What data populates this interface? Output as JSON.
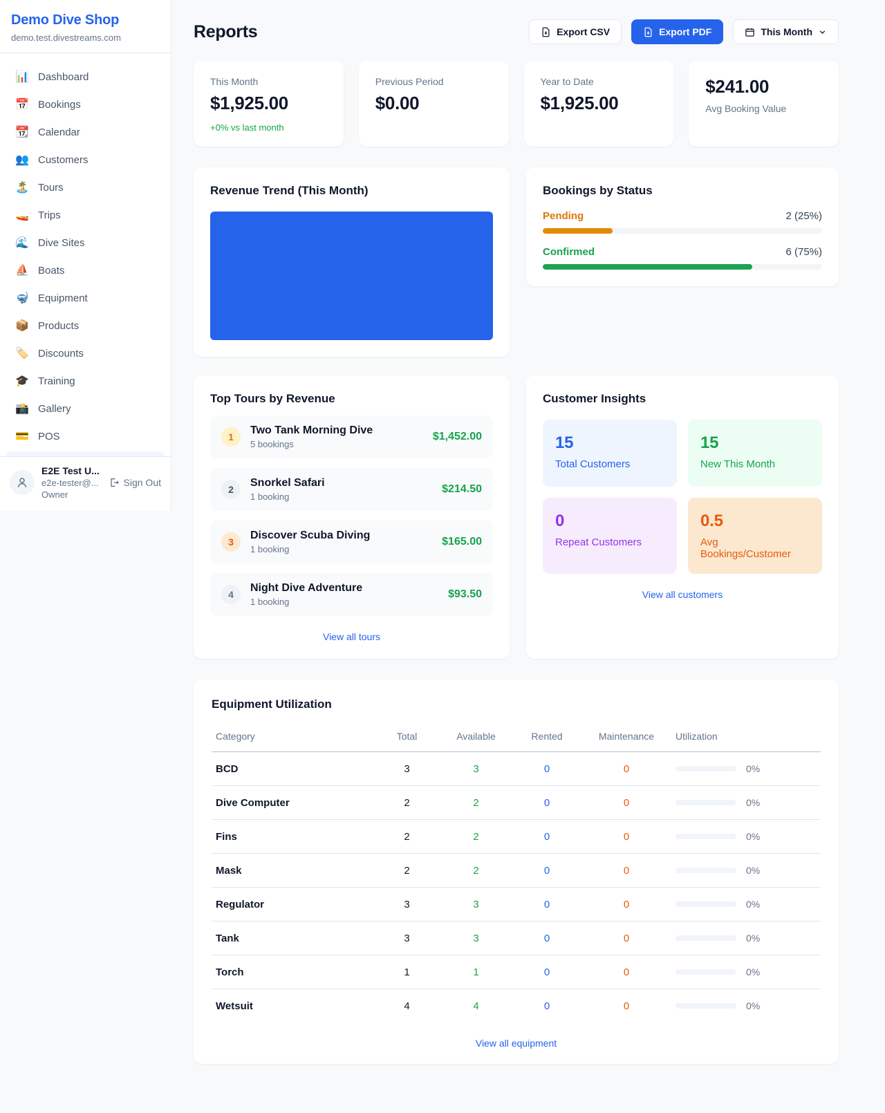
{
  "brand": {
    "name": "Demo Dive Shop",
    "domain": "demo.test.divestreams.com"
  },
  "colors": {
    "accent": "#2563eb",
    "success": "#16a34a",
    "warning": "#d97706",
    "danger_orange": "#ea580c",
    "purple": "#9333ea",
    "link": "#2563eb"
  },
  "sidebar": {
    "items": [
      {
        "icon": "📊",
        "label": "Dashboard"
      },
      {
        "icon": "📅",
        "label": "Bookings"
      },
      {
        "icon": "📆",
        "label": "Calendar"
      },
      {
        "icon": "👥",
        "label": "Customers"
      },
      {
        "icon": "🏝️",
        "label": "Tours"
      },
      {
        "icon": "🚤",
        "label": "Trips"
      },
      {
        "icon": "🌊",
        "label": "Dive Sites"
      },
      {
        "icon": "⛵",
        "label": "Boats"
      },
      {
        "icon": "🤿",
        "label": "Equipment"
      },
      {
        "icon": "📦",
        "label": "Products"
      },
      {
        "icon": "🏷️",
        "label": "Discounts"
      },
      {
        "icon": "🎓",
        "label": "Training"
      },
      {
        "icon": "📸",
        "label": "Gallery"
      },
      {
        "icon": "💳",
        "label": "POS"
      }
    ],
    "user": {
      "name": "E2E Test U...",
      "email": "e2e-tester@...",
      "role": "Owner",
      "signout_label": "Sign Out"
    }
  },
  "header": {
    "title": "Reports",
    "export_csv_label": "Export CSV",
    "export_pdf_label": "Export PDF",
    "period_label": "This Month"
  },
  "stats": [
    {
      "label": "This Month",
      "value": "$1,925.00",
      "delta": "+0% vs last month"
    },
    {
      "label": "Previous Period",
      "value": "$0.00"
    },
    {
      "label": "Year to Date",
      "value": "$1,925.00"
    },
    {
      "label": "Avg Booking Value",
      "value": "$241.00"
    }
  ],
  "revenue_trend": {
    "title": "Revenue Trend (This Month)",
    "bar_color": "#2563eb"
  },
  "bookings_by_status": {
    "title": "Bookings by Status",
    "rows": [
      {
        "label": "Pending",
        "value": "2 (25%)",
        "percent": 25,
        "color": "#d97706",
        "bar_color": "#e28a00"
      },
      {
        "label": "Confirmed",
        "value": "6 (75%)",
        "percent": 75,
        "color": "#16a34a",
        "bar_color": "#1ca34f"
      }
    ]
  },
  "top_tours": {
    "title": "Top Tours by Revenue",
    "rows": [
      {
        "rank": "1",
        "name": "Two Tank Morning Dive",
        "bookings": "5 bookings",
        "revenue": "$1,452.00",
        "badge_bg": "#fdf2c8",
        "badge_fg": "#d97706"
      },
      {
        "rank": "2",
        "name": "Snorkel Safari",
        "bookings": "1 booking",
        "revenue": "$214.50",
        "badge_bg": "#eef1f5",
        "badge_fg": "#475569"
      },
      {
        "rank": "3",
        "name": "Discover Scuba Diving",
        "bookings": "1 booking",
        "revenue": "$165.00",
        "badge_bg": "#fce9d2",
        "badge_fg": "#ea580c"
      },
      {
        "rank": "4",
        "name": "Night Dive Adventure",
        "bookings": "1 booking",
        "revenue": "$93.50",
        "badge_bg": "#eef1f5",
        "badge_fg": "#64748b"
      }
    ],
    "link_label": "View all tours"
  },
  "customer_insights": {
    "title": "Customer Insights",
    "tiles": [
      {
        "value": "15",
        "label": "Total Customers",
        "fg": "#2563eb",
        "bg": "#eef5fe"
      },
      {
        "value": "15",
        "label": "New This Month",
        "fg": "#16a34a",
        "bg": "#ecfdf3"
      },
      {
        "value": "0",
        "label": "Repeat Customers",
        "fg": "#9333ea",
        "bg": "#f7ecfe"
      },
      {
        "value": "0.5",
        "label": "Avg Bookings/Customer",
        "fg": "#ea580c",
        "bg": "#fbe8cf"
      }
    ],
    "link_label": "View all customers"
  },
  "equipment": {
    "title": "Equipment Utilization",
    "columns": [
      "Category",
      "Total",
      "Available",
      "Rented",
      "Maintenance",
      "Utilization"
    ],
    "colors": {
      "available": "#16a34a",
      "rented": "#2563eb",
      "maintenance": "#ea580c"
    },
    "rows": [
      {
        "category": "BCD",
        "total": "3",
        "available": "3",
        "rented": "0",
        "maintenance": "0",
        "utilization": "0%",
        "percent": 0
      },
      {
        "category": "Dive Computer",
        "total": "2",
        "available": "2",
        "rented": "0",
        "maintenance": "0",
        "utilization": "0%",
        "percent": 0
      },
      {
        "category": "Fins",
        "total": "2",
        "available": "2",
        "rented": "0",
        "maintenance": "0",
        "utilization": "0%",
        "percent": 0
      },
      {
        "category": "Mask",
        "total": "2",
        "available": "2",
        "rented": "0",
        "maintenance": "0",
        "utilization": "0%",
        "percent": 0
      },
      {
        "category": "Regulator",
        "total": "3",
        "available": "3",
        "rented": "0",
        "maintenance": "0",
        "utilization": "0%",
        "percent": 0
      },
      {
        "category": "Tank",
        "total": "3",
        "available": "3",
        "rented": "0",
        "maintenance": "0",
        "utilization": "0%",
        "percent": 0
      },
      {
        "category": "Torch",
        "total": "1",
        "available": "1",
        "rented": "0",
        "maintenance": "0",
        "utilization": "0%",
        "percent": 0
      },
      {
        "category": "Wetsuit",
        "total": "4",
        "available": "4",
        "rented": "0",
        "maintenance": "0",
        "utilization": "0%",
        "percent": 0
      }
    ],
    "link_label": "View all equipment"
  }
}
